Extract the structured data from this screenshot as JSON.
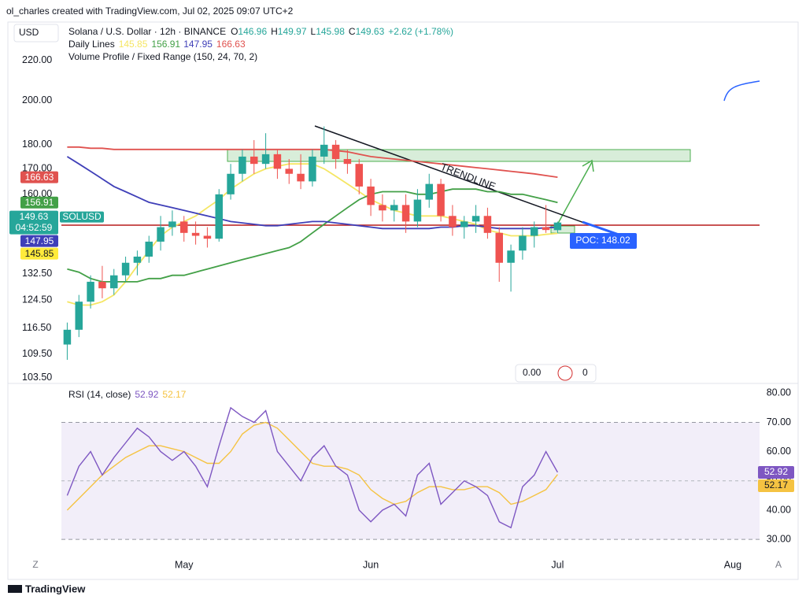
{
  "page": {
    "watermark": "ol_charles created with TradingView.com, Jul 02, 2025 09:07 UTC+2",
    "currency": "USD",
    "brand": "TradingView",
    "buttons": [
      "Z",
      "A"
    ],
    "widget": {
      "left": "0.00",
      "right": "0"
    }
  },
  "chart_data": [
    {
      "type": "candlestick",
      "title": "Solana / U.S. Dollar · 12h · BINANCE",
      "ohlc": [
        {
          "label": "O",
          "value": 146.96
        },
        {
          "label": "H",
          "value": 149.97
        },
        {
          "label": "L",
          "value": 145.98
        },
        {
          "label": "C",
          "value": 149.63
        }
      ],
      "change": "+2.62 (+1.78%)",
      "symbol": "SOLUSD",
      "countdown": "04:52:59",
      "overlay_title": "Daily Lines",
      "indicator": "Volume Profile / Fixed Range (150, 24, 70, 2)",
      "annotations": {
        "trendline": "TRENDLINE",
        "poc": "POC: 148.02"
      },
      "up_color": "#26a69a",
      "down_color": "#ef5350",
      "log": true,
      "ylim": [
        102.5,
        240
      ],
      "yticks": [
        {
          "value": 220,
          "label": "220.00"
        },
        {
          "value": 200,
          "label": "200.00"
        },
        {
          "value": 180,
          "label": "180.00"
        },
        {
          "value": 170,
          "label": "170.00"
        },
        {
          "value": 160,
          "label": "160.00"
        },
        {
          "value": 132.5,
          "label": "132.50"
        },
        {
          "value": 124.5,
          "label": "124.50"
        },
        {
          "value": 116.5,
          "label": "116.50"
        },
        {
          "value": 109.5,
          "label": "109.50"
        },
        {
          "value": 103.5,
          "label": "103.50"
        }
      ],
      "categories": [
        null,
        null,
        null,
        null,
        null,
        null,
        null,
        null,
        null,
        null,
        "May",
        null,
        null,
        null,
        null,
        null,
        null,
        null,
        null,
        null,
        null,
        null,
        null,
        null,
        null,
        null,
        "Jun",
        null,
        null,
        null,
        null,
        null,
        null,
        null,
        null,
        null,
        null,
        null,
        null,
        null,
        null,
        null,
        "Jul",
        null,
        null,
        null,
        null,
        null,
        null,
        null,
        null,
        null,
        null,
        null,
        null,
        null,
        null,
        "Aug",
        null,
        null
      ],
      "open": [
        112,
        116,
        124,
        130,
        128,
        132,
        136,
        138,
        143,
        148,
        150,
        146,
        145,
        144,
        160,
        168,
        175,
        172,
        176,
        170,
        168,
        165,
        175,
        180,
        174,
        172,
        163,
        156,
        154,
        156,
        150,
        158,
        164,
        152,
        148,
        150,
        152,
        146,
        136,
        140,
        145,
        148,
        146.96,
        null,
        null,
        null,
        null,
        null,
        null,
        null,
        null,
        null,
        null,
        null,
        null,
        null,
        null,
        null,
        null,
        null
      ],
      "high": [
        118,
        126,
        132,
        135,
        134,
        138,
        140,
        145,
        152,
        154,
        152,
        150,
        148,
        162,
        172,
        178,
        182,
        185,
        178,
        174,
        176,
        178,
        188,
        182,
        178,
        174,
        166,
        160,
        158,
        160,
        162,
        168,
        166,
        156,
        152,
        156,
        155,
        148,
        142,
        148,
        150,
        156,
        149.97,
        null,
        null,
        null,
        null,
        null,
        null,
        null,
        null,
        null,
        null,
        null,
        null,
        null,
        null,
        null,
        null,
        null
      ],
      "low": [
        108,
        114,
        122,
        125,
        126,
        130,
        132,
        136,
        140,
        145,
        143,
        142,
        141,
        143,
        158,
        165,
        168,
        170,
        166,
        164,
        162,
        163,
        172,
        170,
        168,
        160,
        152,
        150,
        150,
        146,
        148,
        155,
        150,
        145,
        144,
        146,
        144,
        130,
        127,
        137,
        141,
        146,
        145.98,
        null,
        null,
        null,
        null,
        null,
        null,
        null,
        null,
        null,
        null,
        null,
        null,
        null,
        null,
        null,
        null,
        null
      ],
      "close": [
        116,
        124,
        130,
        128,
        132,
        136,
        138,
        143,
        148,
        150,
        146,
        145,
        144,
        160,
        168,
        175,
        172,
        176,
        170,
        168,
        165,
        175,
        180,
        174,
        172,
        163,
        156,
        154,
        156,
        150,
        158,
        164,
        152,
        148,
        150,
        152,
        146,
        136,
        140,
        145,
        148,
        147,
        149.63,
        null,
        null,
        null,
        null,
        null,
        null,
        null,
        null,
        null,
        null,
        null,
        null,
        null,
        null,
        null,
        null,
        null
      ],
      "series": [
        {
          "color": "#f5e663",
          "last": 145.85,
          "values": [
            124,
            123,
            123,
            124,
            126,
            130,
            135,
            140,
            145,
            148,
            150,
            152,
            155,
            158,
            162,
            165,
            168,
            170,
            171,
            172,
            172,
            172,
            170,
            167,
            164,
            161,
            158,
            156,
            154,
            153,
            152,
            152,
            152,
            151,
            150,
            149,
            147,
            146,
            145,
            145,
            145,
            145.5,
            145.85,
            null,
            null,
            null,
            null,
            null,
            null,
            null,
            null,
            null,
            null,
            null,
            null,
            null,
            null,
            null,
            null,
            null
          ]
        },
        {
          "color": "#43a047",
          "last": 156.91,
          "values": [
            134,
            133,
            131,
            130,
            130,
            130,
            130,
            131,
            131,
            132,
            132,
            133,
            134,
            135,
            136,
            137,
            138,
            139,
            140,
            141,
            143,
            146,
            149,
            152,
            155,
            158,
            160,
            161,
            161,
            161,
            160,
            160,
            161,
            162,
            162,
            162,
            161,
            161,
            160,
            160,
            159,
            158,
            156.91,
            null,
            null,
            null,
            null,
            null,
            null,
            null,
            null,
            null,
            null,
            null,
            null,
            null,
            null,
            null,
            null,
            null
          ]
        },
        {
          "color": "#3f3fb8",
          "last": 147.95,
          "values": [
            175,
            172,
            169,
            166,
            163,
            161,
            159,
            157,
            156,
            155,
            154,
            153,
            152,
            151,
            150,
            149.5,
            149,
            148.5,
            148.5,
            149,
            149.5,
            150,
            150,
            149.5,
            149,
            148.5,
            148,
            147.5,
            147.5,
            147.5,
            147.5,
            147.5,
            148,
            148,
            148.5,
            148.5,
            148,
            147.5,
            147.5,
            147.5,
            147.5,
            147.8,
            147.95,
            null,
            null,
            null,
            null,
            null,
            null,
            null,
            null,
            null,
            null,
            null,
            null,
            null,
            null,
            null,
            null,
            null
          ]
        },
        {
          "color": "#e0524f",
          "last": 166.63,
          "values": [
            179,
            179,
            178.5,
            178.5,
            178,
            178,
            178,
            178,
            178,
            178,
            178,
            178,
            178,
            178,
            178,
            178,
            178,
            178,
            178,
            178,
            178,
            178,
            178,
            177.5,
            177,
            176,
            175,
            174.5,
            174,
            173.5,
            173,
            172.5,
            172,
            171.5,
            171,
            170.5,
            170,
            169.5,
            169,
            168.5,
            168,
            167.3,
            166.63,
            null,
            null,
            null,
            null,
            null,
            null,
            null,
            null,
            null,
            null,
            null,
            null,
            null,
            null,
            null,
            null,
            null
          ]
        }
      ]
    },
    {
      "type": "line",
      "title": "RSI (14, close)",
      "ylim": [
        26,
        82.5
      ],
      "yticks": [
        {
          "value": 80,
          "label": "80.00"
        },
        {
          "value": 70,
          "label": "70.00"
        },
        {
          "value": 60,
          "label": "60.00"
        },
        {
          "value": 50,
          "label": "50.00"
        },
        {
          "value": 40,
          "label": "40.00"
        },
        {
          "value": 30,
          "label": "30.00"
        }
      ],
      "band": [
        30,
        70
      ],
      "midline": 50,
      "series": [
        {
          "color": "#7e57c2",
          "last": 52.92,
          "values": [
            45,
            55,
            60,
            52,
            58,
            63,
            68,
            65,
            60,
            57,
            60,
            55,
            48,
            62,
            75,
            72,
            70,
            74,
            60,
            55,
            50,
            58,
            62,
            55,
            52,
            40,
            36,
            40,
            42,
            38,
            52,
            56,
            42,
            46,
            50,
            48,
            45,
            36,
            34,
            48,
            52,
            60,
            52.92,
            null,
            null,
            null,
            null,
            null,
            null,
            null,
            null,
            null,
            null,
            null,
            null,
            null,
            null,
            null,
            null,
            null
          ]
        },
        {
          "color": "#f5c342",
          "last": 52.17,
          "values": [
            40,
            44,
            48,
            52,
            55,
            58,
            60,
            62,
            62,
            61,
            60,
            58,
            56,
            56,
            60,
            66,
            69,
            70,
            68,
            64,
            60,
            56,
            55,
            55,
            54,
            52,
            47,
            44,
            42,
            43,
            46,
            48,
            48,
            47,
            47,
            48,
            48,
            46,
            42,
            43,
            45,
            47,
            52.17,
            null,
            null,
            null,
            null,
            null,
            null,
            null,
            null,
            null,
            null,
            null,
            null,
            null,
            null,
            null,
            null,
            null
          ]
        }
      ]
    }
  ]
}
